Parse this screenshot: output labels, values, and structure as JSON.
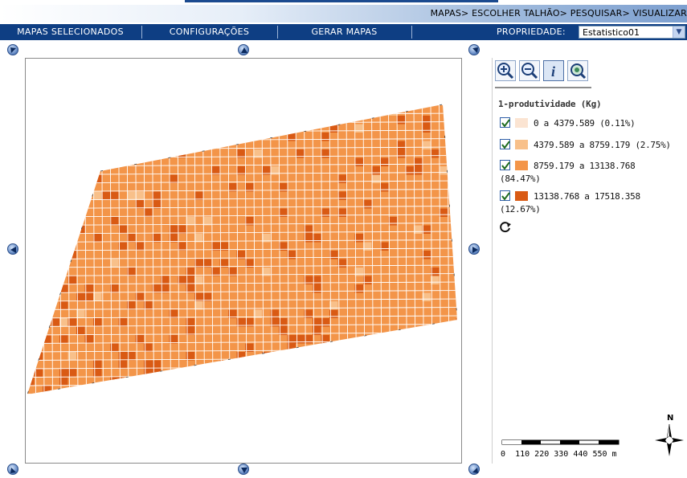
{
  "breadcrumb": "MAPAS> ESCOLHER TALHÃO> PESQUISAR> VISUALIZAR",
  "nav": {
    "items": [
      "MAPAS SELECIONADOS",
      "CONFIGURAÇÕES",
      "GERAR MAPAS"
    ],
    "property_label": "PROPRIEDADE:",
    "property_value": "Estatistico01"
  },
  "toolbar": {
    "buttons": [
      "zoom-in",
      "zoom-out",
      "info",
      "zoom-full"
    ]
  },
  "legend": {
    "title": "1-produtividade (Kg)",
    "items": [
      {
        "label": "0 a 4379.589 (0.11%)",
        "color": "#fbe4d2",
        "checked": true
      },
      {
        "label": "4379.589 a 8759.179 (2.75%)",
        "color": "#f8c08a",
        "checked": true
      },
      {
        "label": "8759.179 a 13138.768 (84.47%)",
        "color": "#f39549",
        "checked": true
      },
      {
        "label": "13138.768 a 17518.358 (12.67%)",
        "color": "#d95a14",
        "checked": true
      }
    ]
  },
  "scale": {
    "ticks": [
      "0",
      "110",
      "220",
      "330",
      "440",
      "550"
    ],
    "unit": "m"
  },
  "north_label": "N",
  "colors": {
    "nav_bg": "#0e3e83",
    "field_main": "#f39549",
    "field_high": "#d95a14",
    "field_low": "#f8c08a",
    "grid_line": "#ffffff"
  }
}
